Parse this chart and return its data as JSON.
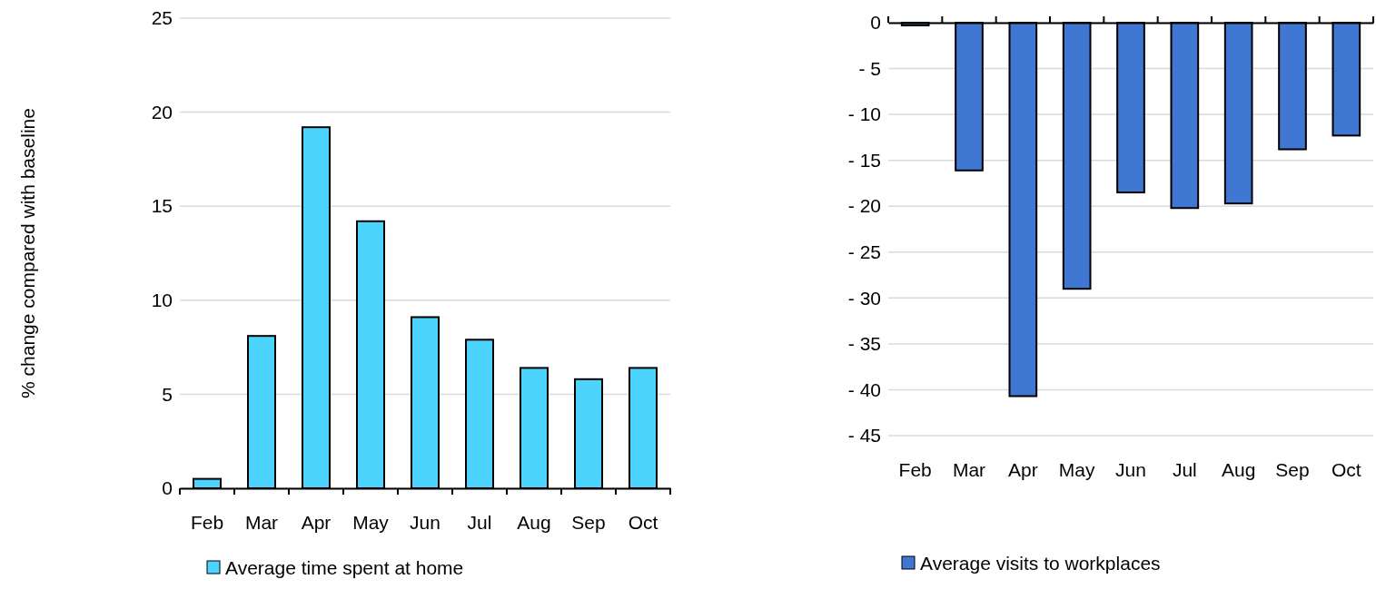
{
  "chart_data": [
    {
      "type": "bar",
      "ylabel": "% change compared with baseline",
      "categories": [
        "Feb",
        "Mar",
        "Apr",
        "May",
        "Jun",
        "Jul",
        "Aug",
        "Sep",
        "Oct"
      ],
      "series": [
        {
          "name": "Average time spent at home",
          "color": "#4dd4fe",
          "values": [
            0.5,
            8.1,
            19.2,
            14.2,
            9.1,
            7.9,
            6.4,
            5.8,
            6.4
          ]
        }
      ],
      "ylim": [
        0,
        25
      ],
      "yticks": [
        0,
        5,
        10,
        15,
        20,
        25
      ],
      "grid": "y",
      "legend": "bottom"
    },
    {
      "type": "bar",
      "categories": [
        "Feb",
        "Mar",
        "Apr",
        "May",
        "Jun",
        "Jul",
        "Aug",
        "Sep",
        "Oct"
      ],
      "series": [
        {
          "name": "Average visits to workplaces",
          "color": "#3f77d2",
          "values": [
            -0.3,
            -16.1,
            -40.7,
            -29.0,
            -18.5,
            -20.2,
            -19.7,
            -13.8,
            -12.3
          ]
        }
      ],
      "ylim": [
        -45,
        0
      ],
      "yticks": [
        {
          "value": 0,
          "label": "0"
        },
        {
          "value": -5,
          "label": "- 5"
        },
        {
          "value": -10,
          "label": "- 10"
        },
        {
          "value": -15,
          "label": "- 15"
        },
        {
          "value": -20,
          "label": "- 20"
        },
        {
          "value": -25,
          "label": "- 25"
        },
        {
          "value": -30,
          "label": "- 30"
        },
        {
          "value": -35,
          "label": "- 35"
        },
        {
          "value": -40,
          "label": "- 40"
        },
        {
          "value": -45,
          "label": "- 45"
        }
      ],
      "grid": "y",
      "legend": "bottom"
    }
  ]
}
